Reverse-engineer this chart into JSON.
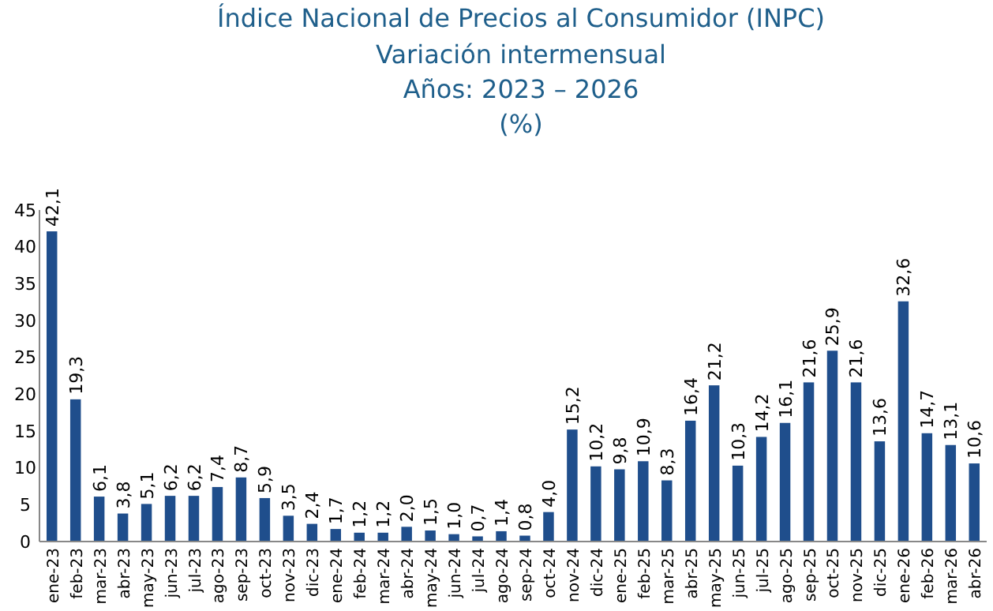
{
  "chart_data": {
    "type": "bar",
    "title": "Índice Nacional de Precios al Consumidor (INPC)",
    "subtitle": "Variación intermensual\nAños: 2023 – 2026\n(%)",
    "categories": [
      "ene-23",
      "feb-23",
      "mar-23",
      "abr-23",
      "may-23",
      "jun-23",
      "jul-23",
      "ago-23",
      "sep-23",
      "oct-23",
      "nov-23",
      "dic-23",
      "ene-24",
      "feb-24",
      "mar-24",
      "abr-24",
      "may-24",
      "jun-24",
      "jul-24",
      "ago-24",
      "sep-24",
      "oct-24",
      "nov-24",
      "dic-24",
      "ene-25",
      "feb-25",
      "mar-25",
      "abr-25",
      "may-25",
      "jun-25",
      "jul-25",
      "ago-25",
      "sep-25",
      "oct-25",
      "nov-25",
      "dic-25",
      "ene-26",
      "feb-26",
      "mar-26",
      "abr-26"
    ],
    "values": [
      42.1,
      19.3,
      6.1,
      3.8,
      5.1,
      6.2,
      6.2,
      7.4,
      8.7,
      5.9,
      3.5,
      2.4,
      1.7,
      1.2,
      1.2,
      2.0,
      1.5,
      1.0,
      0.7,
      1.4,
      0.8,
      4.0,
      15.2,
      10.2,
      9.8,
      10.9,
      8.3,
      16.4,
      21.2,
      10.3,
      14.2,
      16.1,
      21.6,
      25.9,
      21.6,
      13.6,
      32.6,
      14.7,
      13.1,
      10.6
    ],
    "value_labels": [
      "42,1",
      "19,3",
      "6,1",
      "3,8",
      "5,1",
      "6,2",
      "6,2",
      "7,4",
      "8,7",
      "5,9",
      "3,5",
      "2,4",
      "1,7",
      "1,2",
      "1,2",
      "2,0",
      "1,5",
      "1,0",
      "0,7",
      "1,4",
      "0,8",
      "4,0",
      "15,2",
      "10,2",
      "9,8",
      "10,9",
      "8,3",
      "16,4",
      "21,2",
      "10,3",
      "14,2",
      "16,1",
      "21,6",
      "25,9",
      "21,6",
      "13,6",
      "32,6",
      "14,7",
      "13,1",
      "10,6"
    ],
    "color": "#1f4e8c",
    "ylim": [
      0,
      45
    ],
    "yticks": [
      0,
      5,
      10,
      15,
      20,
      25,
      30,
      35,
      40,
      45
    ],
    "grid": false
  }
}
